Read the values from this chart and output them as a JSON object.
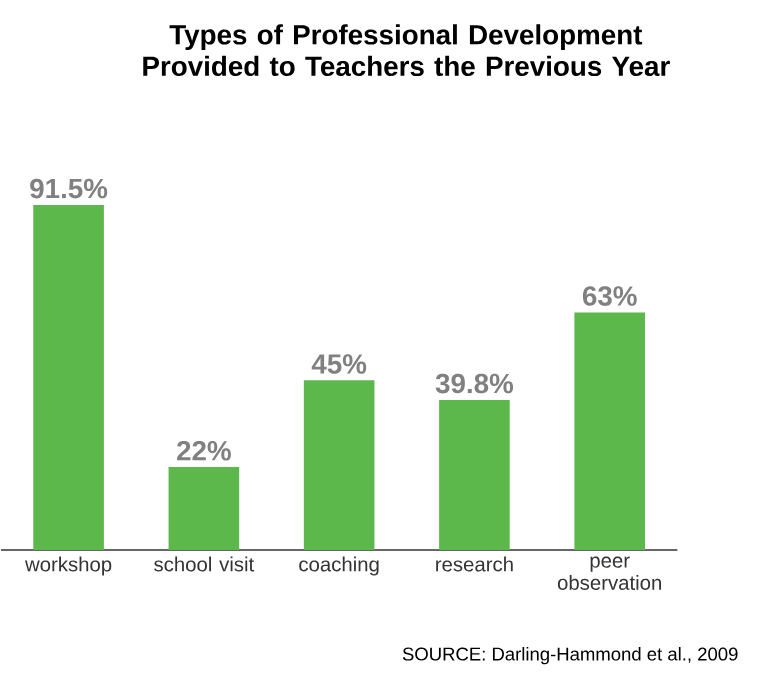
{
  "chart_data": {
    "type": "bar",
    "title": "Types of Professional Development Provided to Teachers the Previous Year",
    "categories": [
      "workshop",
      "school visit",
      "coaching",
      "research",
      "peer observation"
    ],
    "values": [
      91.5,
      22,
      45,
      39.8,
      63
    ],
    "value_labels": [
      "91.5%",
      "22%",
      "45%",
      "39.8%",
      "63%"
    ],
    "color": "#5cb84a",
    "annotations": [
      "SOURCE: Darling-Hammond et al., 2009"
    ]
  }
}
